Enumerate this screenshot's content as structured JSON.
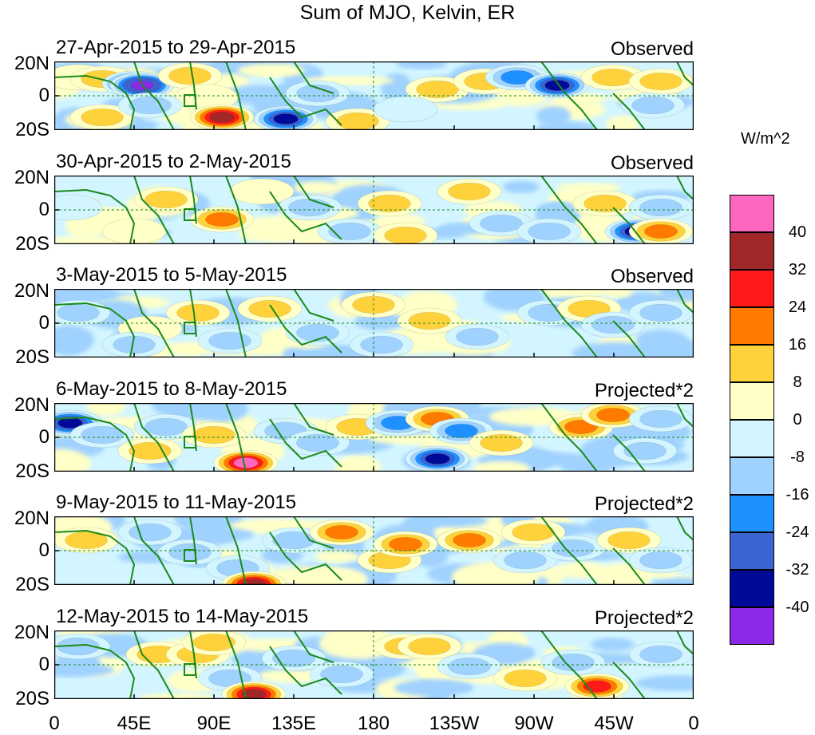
{
  "title": "Sum of MJO, Kelvin, ER",
  "panels": [
    {
      "range": "27-Apr-2015 to 29-Apr-2015",
      "status": "Observed"
    },
    {
      "range": "30-Apr-2015 to 2-May-2015",
      "status": "Observed"
    },
    {
      "range": "3-May-2015 to 5-May-2015",
      "status": "Observed"
    },
    {
      "range": "6-May-2015 to 8-May-2015",
      "status": "Projected*2"
    },
    {
      "range": "9-May-2015 to 11-May-2015",
      "status": "Projected*2"
    },
    {
      "range": "12-May-2015 to 14-May-2015",
      "status": "Projected*2"
    }
  ],
  "lat_labels": [
    "20N",
    "0",
    "20S"
  ],
  "lon_labels": [
    "0",
    "45E",
    "90E",
    "135E",
    "180",
    "135W",
    "90W",
    "45W",
    "0"
  ],
  "colorbar": {
    "units": "W/m^2",
    "labels": [
      "40",
      "32",
      "24",
      "16",
      "8",
      "0",
      "-8",
      "-16",
      "-24",
      "-32",
      "-40"
    ],
    "colors": [
      "#ff66c0",
      "#a02828",
      "#ff1a1a",
      "#ff7a00",
      "#ffd23c",
      "#ffffc8",
      "#d2f5ff",
      "#a0d2ff",
      "#1e90ff",
      "#3c64d2",
      "#000a96",
      "#8c28e6"
    ]
  }
}
